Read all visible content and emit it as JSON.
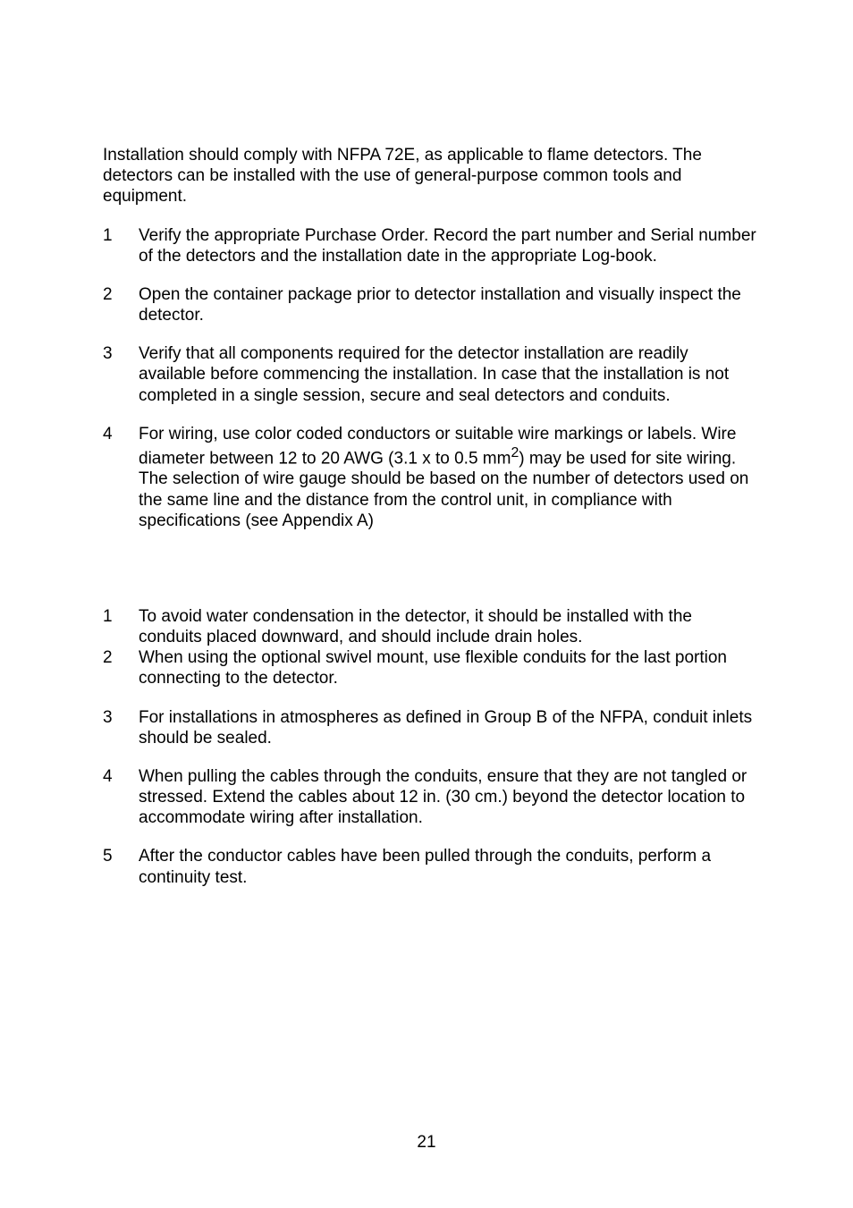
{
  "intro": "Installation should comply with NFPA 72E, as applicable to flame detectors. The detectors can be installed with the use of general-purpose common tools and equipment.",
  "listA": [
    {
      "n": "1",
      "t": "Verify the appropriate Purchase Order. Record the part number and Serial number of the detectors and the installation date in the appropriate Log-book."
    },
    {
      "n": "2",
      "t": "Open the container package prior to detector installation and visually inspect the detector."
    },
    {
      "n": "3",
      "t": "Verify that all components required for the detector installation are readily available before commencing the installation. In case that the installation is not completed in a single session, secure and seal detectors and conduits."
    }
  ],
  "item4": {
    "n": "4",
    "pre": "For wiring, use color coded conductors or suitable wire markings or labels. Wire diameter between 12 to 20 AWG (3.1 x to 0.5 mm",
    "sup": "2",
    "post": ") may be used for site wiring. The selection of wire gauge should be based on the number of detectors used on the same line and the distance from the control unit, in compliance with specifications (see Appendix A)"
  },
  "listB": [
    {
      "n": "1",
      "t": "To avoid water condensation in the detector, it should be installed with the conduits placed downward, and should include drain holes.",
      "tight": true
    },
    {
      "n": "2",
      "t": "When using the optional swivel mount, use flexible conduits for the last portion connecting to the detector."
    },
    {
      "n": "3",
      "t": "For installations in atmospheres as defined in Group B of the NFPA, conduit inlets should be sealed."
    },
    {
      "n": "4",
      "t": "When pulling the cables through the conduits, ensure that they are not tangled or stressed. Extend the cables about 12 in. (30 cm.) beyond the detector location to accommodate wiring after installation."
    },
    {
      "n": "5",
      "t": "After the conductor cables have been pulled through the conduits, perform a continuity test."
    }
  ],
  "pageNumber": "21"
}
